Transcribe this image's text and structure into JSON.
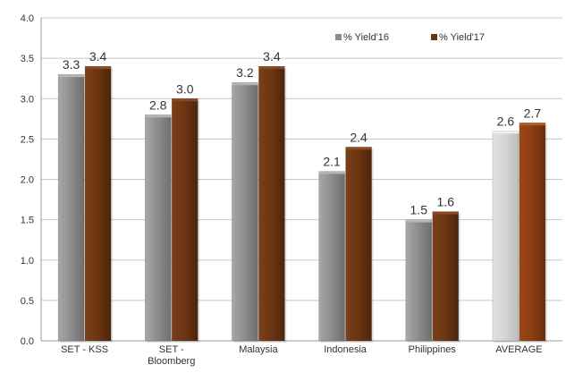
{
  "chart_data": {
    "type": "bar",
    "categories": [
      [
        "SET - KSS"
      ],
      [
        "SET -",
        "Bloomberg"
      ],
      [
        "Malaysia"
      ],
      [
        "Indonesia"
      ],
      [
        "Philippines"
      ],
      [
        "AVERAGE"
      ]
    ],
    "series": [
      {
        "name": "% Yield'16",
        "values": [
          3.3,
          2.8,
          3.2,
          2.1,
          1.5,
          2.6
        ],
        "color": "#8c8c8c",
        "highlight_color": "#d4d4d4"
      },
      {
        "name": "% Yield'17",
        "values": [
          3.4,
          3.0,
          3.4,
          2.4,
          1.6,
          2.7
        ],
        "color": "#6b3512",
        "highlight_color": "#8a3d14"
      }
    ],
    "data_labels": [
      [
        "3.3",
        "2.8",
        "3.2",
        "2.1",
        "1.5",
        "2.6"
      ],
      [
        "3.4",
        "3.0",
        "3.4",
        "2.4",
        "1.6",
        "2.7"
      ]
    ],
    "highlight_category_index": 5,
    "yticks": [
      "0.0",
      "0.5",
      "1.0",
      "1.5",
      "2.0",
      "2.5",
      "3.0",
      "3.5",
      "4.0"
    ],
    "ylim": [
      0,
      4
    ],
    "grid": true,
    "legend_position": "top-right",
    "title": "",
    "xlabel": "",
    "ylabel": ""
  }
}
